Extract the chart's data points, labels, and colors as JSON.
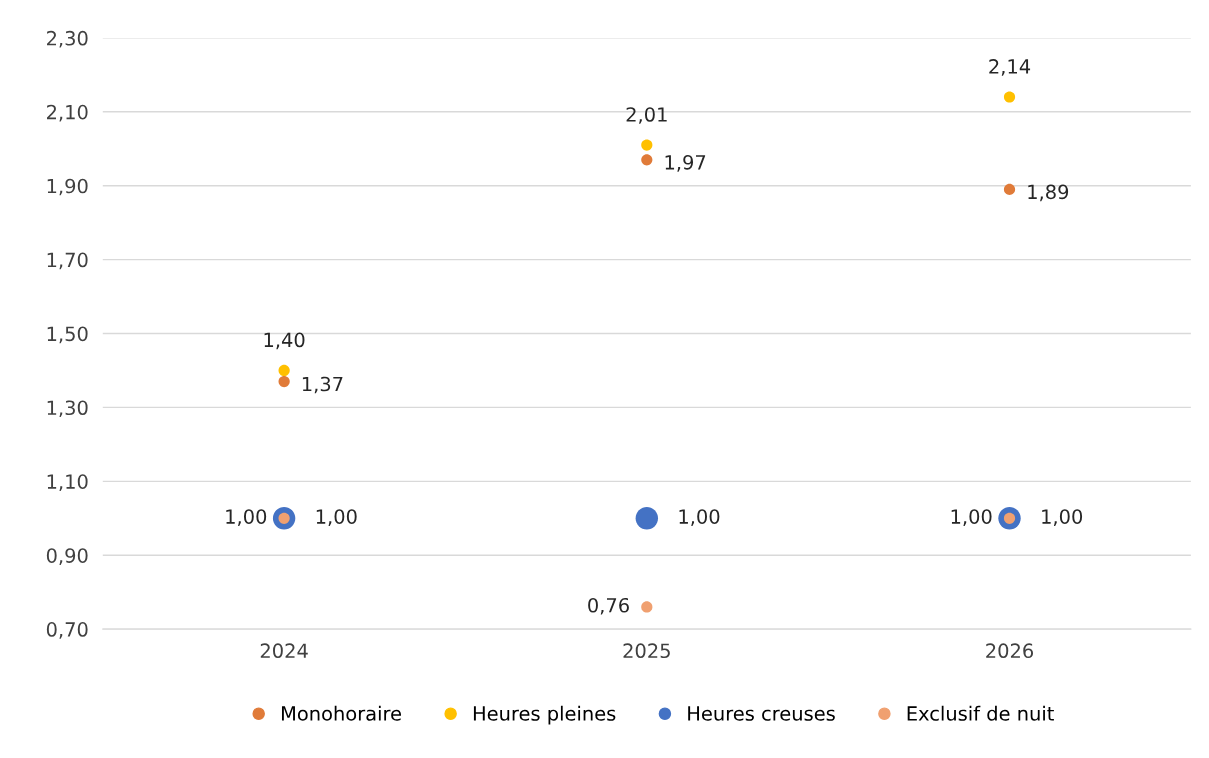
{
  "chart_data": {
    "type": "scatter",
    "categories": [
      "2024",
      "2025",
      "2026"
    ],
    "series": [
      {
        "name": "Monohoraire",
        "color": "#e07b39",
        "values": [
          1.37,
          1.97,
          1.89
        ],
        "sizes": [
          0.25,
          0.25,
          0.25
        ],
        "value_labels": [
          "1,37",
          "1,97",
          "1,89"
        ]
      },
      {
        "name": "Heures pleines",
        "color": "#ffc000",
        "values": [
          1.4,
          2.01,
          2.14
        ],
        "sizes": [
          0.25,
          0.25,
          0.25
        ],
        "value_labels": [
          "1,40",
          "2,01",
          "2,14"
        ]
      },
      {
        "name": "Heures creuses",
        "color": "#4472c4",
        "values": [
          1.0,
          1.0,
          1.0
        ],
        "sizes": [
          1,
          1,
          1
        ],
        "value_labels": [
          "1,00",
          "1,00",
          "1,00"
        ]
      },
      {
        "name": "Exclusif de nuit",
        "color": "#f0a070",
        "values": [
          1.0,
          0.76,
          1.0
        ],
        "sizes": [
          0.25,
          0.25,
          0.25
        ],
        "value_labels": [
          "1,00",
          "0,76",
          "1,00"
        ]
      }
    ],
    "ylim": [
      0.7,
      2.3
    ],
    "yticks": [
      {
        "value": 0.7,
        "label": "0,70"
      },
      {
        "value": 0.9,
        "label": "0,90"
      },
      {
        "value": 1.1,
        "label": "1,10"
      },
      {
        "value": 1.3,
        "label": "1,30"
      },
      {
        "value": 1.5,
        "label": "1,50"
      },
      {
        "value": 1.7,
        "label": "1,70"
      },
      {
        "value": 1.9,
        "label": "1,90"
      },
      {
        "value": 2.1,
        "label": "2,10"
      },
      {
        "value": 2.3,
        "label": "2,30"
      }
    ],
    "grid": "y",
    "legend": "bottom",
    "marker": "circle"
  }
}
